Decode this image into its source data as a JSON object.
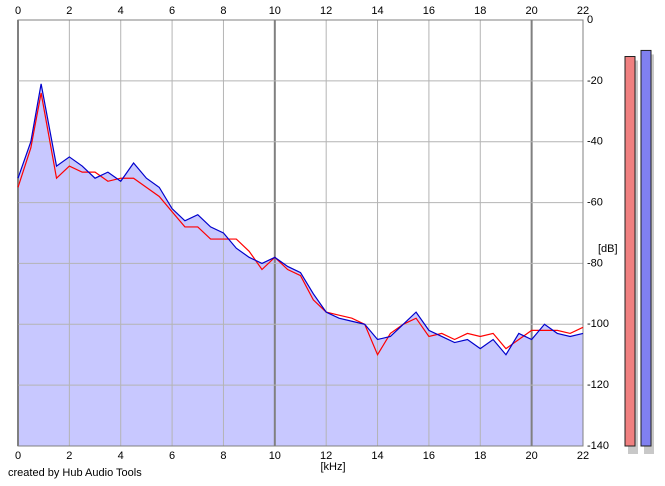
{
  "chart_data": {
    "type": "spectrum",
    "xlabel": "[kHz]",
    "ylabel": "[dB]",
    "footer": "created by Hub Audio Tools",
    "x": [
      0,
      0.5,
      0.9,
      1.5,
      2,
      2.5,
      3,
      3.5,
      4,
      4.5,
      5,
      5.5,
      6,
      6.5,
      7,
      7.5,
      8,
      8.5,
      9,
      9.5,
      10,
      10.5,
      11,
      11.5,
      12,
      12.5,
      13,
      13.5,
      14,
      14.5,
      15,
      15.5,
      16,
      16.5,
      17,
      17.5,
      18,
      18.5,
      19,
      19.5,
      20,
      20.5,
      21,
      21.5,
      22
    ],
    "series": [
      {
        "color": "#ff0000",
        "values": [
          -55,
          -42,
          -24,
          -52,
          -48,
          -50,
          -50,
          -53,
          -52,
          -52,
          -55,
          -58,
          -63,
          -68,
          -68,
          -72,
          -72,
          -72,
          -76,
          -82,
          -78,
          -82,
          -84,
          -92,
          -96,
          -97,
          -98,
          -100,
          -110,
          -103,
          -100,
          -98,
          -104,
          -103,
          -105,
          -103,
          -104,
          -103,
          -108,
          -105,
          -102,
          -102,
          -102,
          -103,
          -101
        ]
      },
      {
        "color": "#0000cc",
        "values": [
          -52,
          -40,
          -21,
          -48,
          -45,
          -48,
          -52,
          -50,
          -53,
          -47,
          -52,
          -55,
          -62,
          -66,
          -64,
          -68,
          -70,
          -75,
          -78,
          -80,
          -78,
          -81,
          -83,
          -90,
          -96,
          -98,
          -99,
          -100,
          -105,
          -104,
          -100,
          -96,
          -102,
          -104,
          -106,
          -105,
          -108,
          -105,
          -110,
          -103,
          -105,
          -100,
          -103,
          -104,
          -103
        ]
      }
    ],
    "fill_color": "#c8c8ff",
    "xlim": [
      0,
      22
    ],
    "xticks": [
      0,
      2,
      4,
      6,
      8,
      10,
      12,
      14,
      16,
      18,
      20,
      22
    ],
    "ylim": [
      -140,
      0
    ],
    "yticks": [
      0,
      -20,
      -40,
      -60,
      -80,
      -100,
      -120,
      -140
    ],
    "grid": true,
    "meters": [
      {
        "color": "#f08080",
        "value": -12
      },
      {
        "color": "#8080f0",
        "value": -10
      }
    ]
  }
}
